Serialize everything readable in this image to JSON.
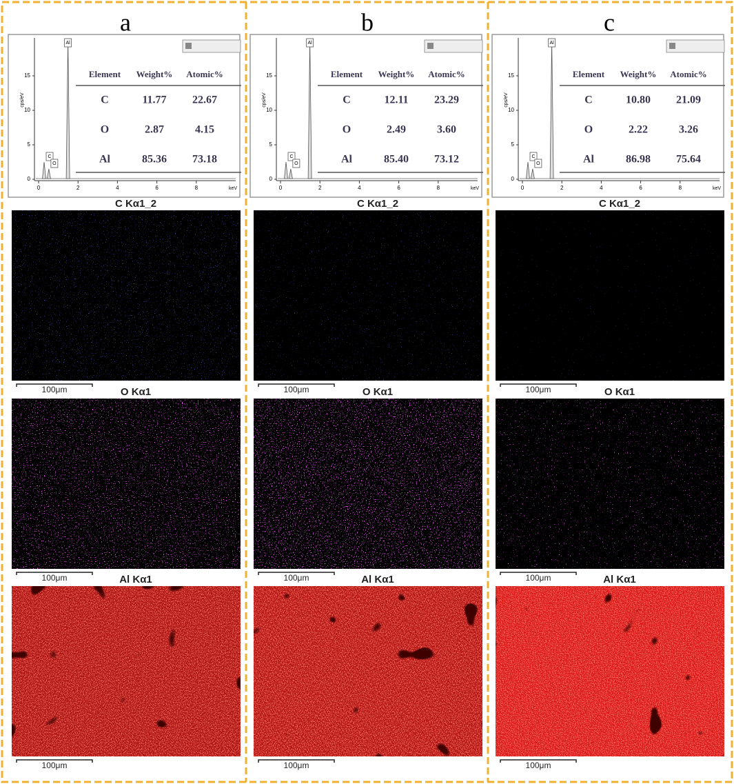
{
  "panels": [
    {
      "label": "a",
      "spectrum": {
        "ylabel": "cps/eV",
        "xlabel": "keV",
        "xlim": [
          0,
          10
        ],
        "ylim": [
          0,
          20.5
        ],
        "xticks": [
          0,
          2,
          4,
          6,
          8
        ],
        "yticks": [
          0,
          5,
          10,
          15
        ],
        "peaks": [
          {
            "label": "C",
            "x": 0.28,
            "y": 2.5
          },
          {
            "label": "O",
            "x": 0.52,
            "y": 1.5
          },
          {
            "label": "Al",
            "x": 1.49,
            "y": 20.2
          }
        ]
      },
      "table": {
        "header": [
          "Element",
          "Weight%",
          "Atomic%"
        ],
        "rows": [
          [
            "C",
            "11.77",
            "22.67"
          ],
          [
            "O",
            "2.87",
            "4.15"
          ],
          [
            "Al",
            "85.36",
            "73.18"
          ]
        ]
      },
      "maps": [
        {
          "title": "C Kα1_2",
          "scale_bar": "100μm"
        },
        {
          "title": "O Kα1",
          "scale_bar": "100μm"
        },
        {
          "title": "Al Kα1",
          "scale_bar": "100μm"
        }
      ]
    },
    {
      "label": "b",
      "spectrum": {
        "ylabel": "cps/eV",
        "xlabel": "keV",
        "xlim": [
          0,
          10
        ],
        "ylim": [
          0,
          20.5
        ],
        "xticks": [
          0,
          2,
          4,
          6,
          8
        ],
        "yticks": [
          0,
          5,
          10,
          15
        ],
        "peaks": [
          {
            "label": "C",
            "x": 0.28,
            "y": 2.5
          },
          {
            "label": "O",
            "x": 0.52,
            "y": 1.5
          },
          {
            "label": "Al",
            "x": 1.49,
            "y": 20.2
          }
        ]
      },
      "table": {
        "header": [
          "Element",
          "Weight%",
          "Atomic%"
        ],
        "rows": [
          [
            "C",
            "12.11",
            "23.29"
          ],
          [
            "O",
            "2.49",
            "3.60"
          ],
          [
            "Al",
            "85.40",
            "73.12"
          ]
        ]
      },
      "maps": [
        {
          "title": "C Kα1_2",
          "scale_bar": "100μm"
        },
        {
          "title": "O Kα1",
          "scale_bar": "100μm"
        },
        {
          "title": "Al Kα1",
          "scale_bar": "100μm"
        }
      ]
    },
    {
      "label": "c",
      "spectrum": {
        "ylabel": "cps/eV",
        "xlabel": "keV",
        "xlim": [
          0,
          10
        ],
        "ylim": [
          0,
          20.5
        ],
        "xticks": [
          0,
          2,
          4,
          6,
          8
        ],
        "yticks": [
          0,
          5,
          10,
          15
        ],
        "peaks": [
          {
            "label": "C",
            "x": 0.28,
            "y": 2.5
          },
          {
            "label": "O",
            "x": 0.52,
            "y": 1.5
          },
          {
            "label": "Al",
            "x": 1.49,
            "y": 20.2
          }
        ]
      },
      "table": {
        "header": [
          "Element",
          "Weight%",
          "Atomic%"
        ],
        "rows": [
          [
            "C",
            "10.80",
            "21.09"
          ],
          [
            "O",
            "2.22",
            "3.26"
          ],
          [
            "Al",
            "86.98",
            "75.64"
          ]
        ]
      },
      "maps": [
        {
          "title": "C Kα1_2",
          "scale_bar": "100μm"
        },
        {
          "title": "O Kα1",
          "scale_bar": "100μm"
        },
        {
          "title": "Al Kα1",
          "scale_bar": "100μm"
        }
      ]
    }
  ]
}
